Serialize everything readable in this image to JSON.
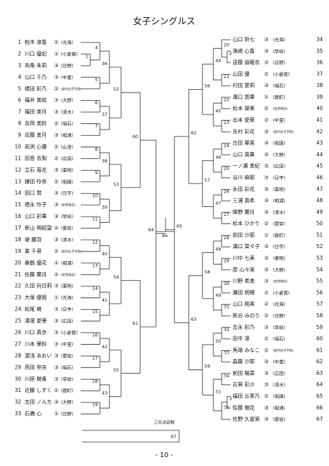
{
  "title": "女子シングルス",
  "third_place": "三位決定戦",
  "footer": "- 10 -",
  "players": [
    {
      "no": "1",
      "name": "柏木 凛香",
      "grade": "②",
      "school": "(光海)"
    },
    {
      "no": "2",
      "name": "川口 優妃",
      "grade": "①",
      "school": "(小倉賀)"
    },
    {
      "no": "3",
      "name": "両角 朱莉",
      "grade": "③",
      "school": "(日野)"
    },
    {
      "no": "4",
      "name": "山口 千乃",
      "grade": "③",
      "school": "(中里)"
    },
    {
      "no": "5",
      "name": "横田 彩乃",
      "grade": "②",
      "school": "(屋代比子学校)"
    },
    {
      "no": "6",
      "name": "福井 美結",
      "grade": "③",
      "school": "(大野)"
    },
    {
      "no": "7",
      "name": "福田 美月",
      "grade": "③",
      "school": "(清水)"
    },
    {
      "no": "8",
      "name": "吉岡 美鈴",
      "grade": "②",
      "school": "(福石)"
    },
    {
      "no": "9",
      "name": "近藤 美月",
      "grade": "③",
      "school": "(相浦)"
    },
    {
      "no": "10",
      "name": "岩渕 心優",
      "grade": "②",
      "school": "(山澄)"
    },
    {
      "no": "11",
      "name": "田島 衣梨",
      "grade": "②",
      "school": "(広田)"
    },
    {
      "no": "12",
      "name": "立石 苺花",
      "grade": "③",
      "school": "(東明)"
    },
    {
      "no": "13",
      "name": "鎌田 怜奈",
      "grade": "②",
      "school": "(祇園)"
    },
    {
      "no": "14",
      "name": "田口 賀",
      "grade": "③",
      "school": "(日宇)"
    },
    {
      "no": "15",
      "name": "徳永 怜子",
      "grade": "③",
      "school": "(佐世保北)"
    },
    {
      "no": "16",
      "name": "山口 彩華",
      "grade": "③",
      "school": "(早岐)"
    },
    {
      "no": "17",
      "name": "新山 明結望",
      "grade": "②",
      "school": "(愛宕)"
    },
    {
      "no": "18",
      "name": "堤 麗羽",
      "grade": "③",
      "school": "(清水)"
    },
    {
      "no": "19",
      "name": "東 千尋",
      "grade": "②",
      "school": "(屋代比子学校)"
    },
    {
      "no": "20",
      "name": "桑鶴 優花",
      "grade": "①",
      "school": "(相浦)"
    },
    {
      "no": "21",
      "name": "佐藤 葉月",
      "grade": "②",
      "school": "(佐世保北)"
    },
    {
      "no": "22",
      "name": "久田 向日莉",
      "grade": "③",
      "school": "(東明)"
    },
    {
      "no": "23",
      "name": "大塚 優姫",
      "grade": "①",
      "school": "(光海)"
    },
    {
      "no": "24",
      "name": "松尾 萌",
      "grade": "③",
      "school": "(日宇)"
    },
    {
      "no": "25",
      "name": "浦濱 愛華",
      "grade": "③",
      "school": "(広田)"
    },
    {
      "no": "26",
      "name": "川口 真歩",
      "grade": "③",
      "school": "(小倉賀)"
    },
    {
      "no": "27",
      "name": "川本 華鈴",
      "grade": "③",
      "school": "(中里)"
    },
    {
      "no": "28",
      "name": "濵浅 あおい",
      "grade": "③",
      "school": "(愛宕)"
    },
    {
      "no": "29",
      "name": "西田 奈央",
      "grade": "③",
      "school": "(福石)"
    },
    {
      "no": "30",
      "name": "川原 暁香",
      "grade": "③",
      "school": "(早岐)"
    },
    {
      "no": "31",
      "name": "近藤 しずく",
      "grade": "②",
      "school": "(鹿町)"
    },
    {
      "no": "32",
      "name": "志田 ノルカ",
      "grade": "③",
      "school": "(大野)"
    },
    {
      "no": "33",
      "name": "石橋 心",
      "grade": "①",
      "school": "(日野)"
    },
    {
      "no": "34",
      "name": "山口 鈴七",
      "grade": "③",
      "school": "(光海)"
    },
    {
      "no": "35",
      "name": "濱崎 心香",
      "grade": "③",
      "school": "(早岐)"
    },
    {
      "no": "36",
      "name": "遠藤 由眠衣",
      "grade": "③",
      "school": "(日野)"
    },
    {
      "no": "37",
      "name": "山田 優",
      "grade": "②",
      "school": "(小倉賀)"
    },
    {
      "no": "38",
      "name": "村田 愛莉",
      "grade": "③",
      "school": "(福石)"
    },
    {
      "no": "39",
      "name": "溝口 悠華",
      "grade": "①",
      "school": "(鹿町)"
    },
    {
      "no": "40",
      "name": "松本 望楽",
      "grade": "②",
      "school": "(佐世保北)"
    },
    {
      "no": "41",
      "name": "出本 愛葵",
      "grade": "②",
      "school": "(中里)"
    },
    {
      "no": "42",
      "name": "吉村 彩花",
      "grade": "③",
      "school": "(屋代比子学校)"
    },
    {
      "no": "43",
      "name": "古田 華英",
      "grade": "③",
      "school": "(祇園)"
    },
    {
      "no": "44",
      "name": "山口 英華",
      "grade": "③",
      "school": "(大野)"
    },
    {
      "no": "45",
      "name": "一ノ瀬 美紀",
      "grade": "③",
      "school": "(広田)"
    },
    {
      "no": "46",
      "name": "谷川 麻耶",
      "grade": "③",
      "school": "(日宇)"
    },
    {
      "no": "47",
      "name": "永田 彩花",
      "grade": "③",
      "school": "(東明)"
    },
    {
      "no": "48",
      "name": "三浦 真希",
      "grade": "③",
      "school": "(相浦)"
    },
    {
      "no": "49",
      "name": "陣野 葉月",
      "grade": "③",
      "school": "(清水)"
    },
    {
      "no": "50",
      "name": "松本 ひかり",
      "grade": "②",
      "school": "(愛宕)"
    },
    {
      "no": "51",
      "name": "前田 沙耶",
      "grade": "①",
      "school": "(鹿町)"
    },
    {
      "no": "52",
      "name": "溝口 菜々子",
      "grade": "③",
      "school": "(日宇)"
    },
    {
      "no": "53",
      "name": "川中 七美",
      "grade": "③",
      "school": "(東明)"
    },
    {
      "no": "54",
      "name": "原 心々実",
      "grade": "③",
      "school": "(大野)"
    },
    {
      "no": "55",
      "name": "川野 希美",
      "grade": "③",
      "school": "(佐世保北)"
    },
    {
      "no": "56",
      "name": "瀬田 明輝",
      "grade": "②",
      "school": "(小倉賀)"
    },
    {
      "no": "57",
      "name": "山口 桃実",
      "grade": "②",
      "school": "(光海)"
    },
    {
      "no": "58",
      "name": "新谷 みのり",
      "grade": "②",
      "school": "(日野)"
    },
    {
      "no": "59",
      "name": "吉永 彩乃",
      "grade": "③",
      "school": "(早岐)"
    },
    {
      "no": "60",
      "name": "田中 凛",
      "grade": "②",
      "school": "(福石)"
    },
    {
      "no": "61",
      "name": "馬場 みなこ",
      "grade": "②",
      "school": "(屋代比子学校)"
    },
    {
      "no": "62",
      "name": "森藤 沙耶",
      "grade": "③",
      "school": "(中里)"
    },
    {
      "no": "63",
      "name": "前田 陽菜",
      "grade": "③",
      "school": "(広田)"
    },
    {
      "no": "64",
      "name": "古賀 彩沙",
      "grade": "③",
      "school": "(清水)"
    },
    {
      "no": "65",
      "name": "福田 丘季乃",
      "grade": "②",
      "school": "(祇園)"
    },
    {
      "no": "66",
      "name": "佐藤 穂花",
      "grade": "③",
      "school": "(相浦)"
    },
    {
      "no": "67",
      "name": "佐野 久留実",
      "grade": "③",
      "school": "(愛宕)"
    }
  ],
  "matches": [
    "1",
    "2",
    "3",
    "4",
    "5",
    "6",
    "7",
    "8",
    "9",
    "10",
    "11",
    "12",
    "13",
    "14",
    "15",
    "16",
    "17",
    "18",
    "19",
    "20",
    "21",
    "22",
    "23",
    "24",
    "25",
    "26",
    "27",
    "28",
    "29",
    "30",
    "31",
    "32",
    "33",
    "34",
    "35",
    "36",
    "37",
    "38",
    "39",
    "40",
    "41",
    "42",
    "43",
    "44",
    "45",
    "46",
    "47",
    "48",
    "49",
    "50",
    "51",
    "52",
    "53",
    "54",
    "55",
    "56",
    "57",
    "58",
    "59",
    "60",
    "61",
    "62",
    "63",
    "64",
    "65",
    "66",
    "67"
  ]
}
